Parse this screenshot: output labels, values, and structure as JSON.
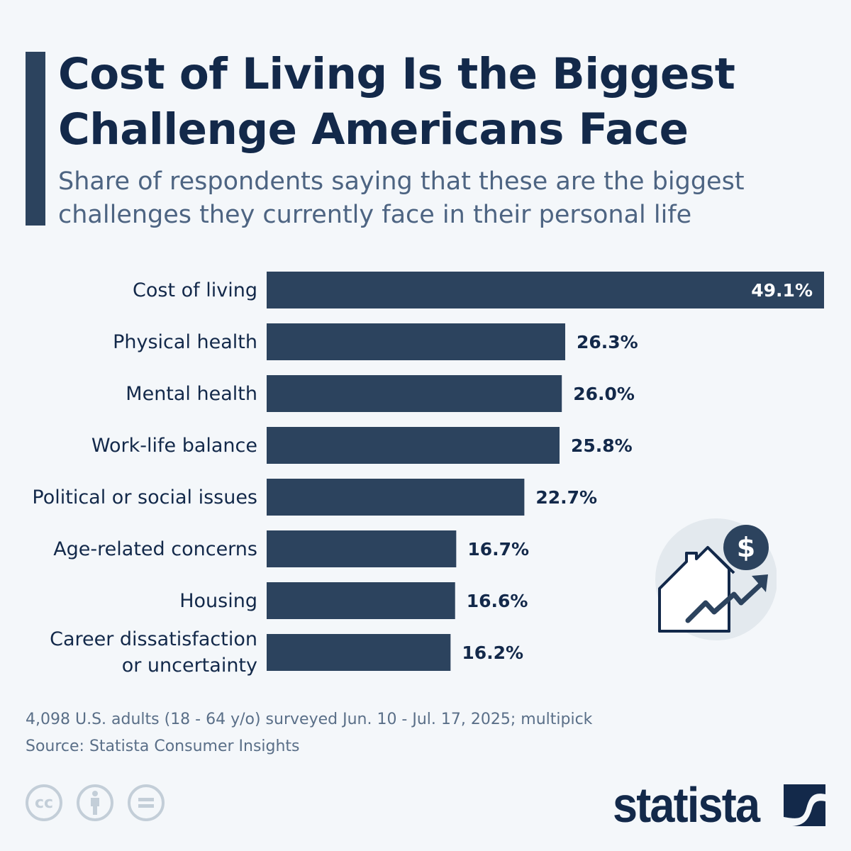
{
  "title": "Cost of Living Is the Biggest Challenge Americans Face",
  "subtitle": "Share of respondents saying that these are the biggest challenges they currently face in their personal life",
  "chart_data": {
    "type": "bar",
    "orientation": "horizontal",
    "categories": [
      "Cost of living",
      "Physical health",
      "Mental health",
      "Work-life balance",
      "Political or social issues",
      "Age-related concerns",
      "Housing",
      "Career dissatisfaction or uncertainty"
    ],
    "category_lines": [
      [
        "Cost of living"
      ],
      [
        "Physical health"
      ],
      [
        "Mental health"
      ],
      [
        "Work-life balance"
      ],
      [
        "Political or social issues"
      ],
      [
        "Age-related concerns"
      ],
      [
        "Housing"
      ],
      [
        "Career dissatisfaction",
        "or uncertainty"
      ]
    ],
    "values": [
      49.1,
      26.3,
      26.0,
      25.8,
      22.7,
      16.7,
      16.6,
      16.2
    ],
    "value_labels": [
      "49.1%",
      "26.3%",
      "26.0%",
      "25.8%",
      "22.7%",
      "16.7%",
      "16.6%",
      "16.2%"
    ],
    "unit": "%",
    "xlim": [
      0,
      49.1
    ],
    "grid": false,
    "bar_color": "#2c435e"
  },
  "footer": {
    "note": "4,098 U.S. adults (18 - 64 y/o) surveyed Jun. 10 - Jul. 17, 2025; multipick",
    "source": "Source: Statista Consumer Insights",
    "license_icons": [
      "cc-icon",
      "attribution-icon",
      "no-derivatives-icon"
    ],
    "cc_text": "cc",
    "logo": "statista"
  },
  "colors": {
    "title": "#13294a",
    "bar": "#2c435e",
    "background": "#f4f7fa"
  }
}
